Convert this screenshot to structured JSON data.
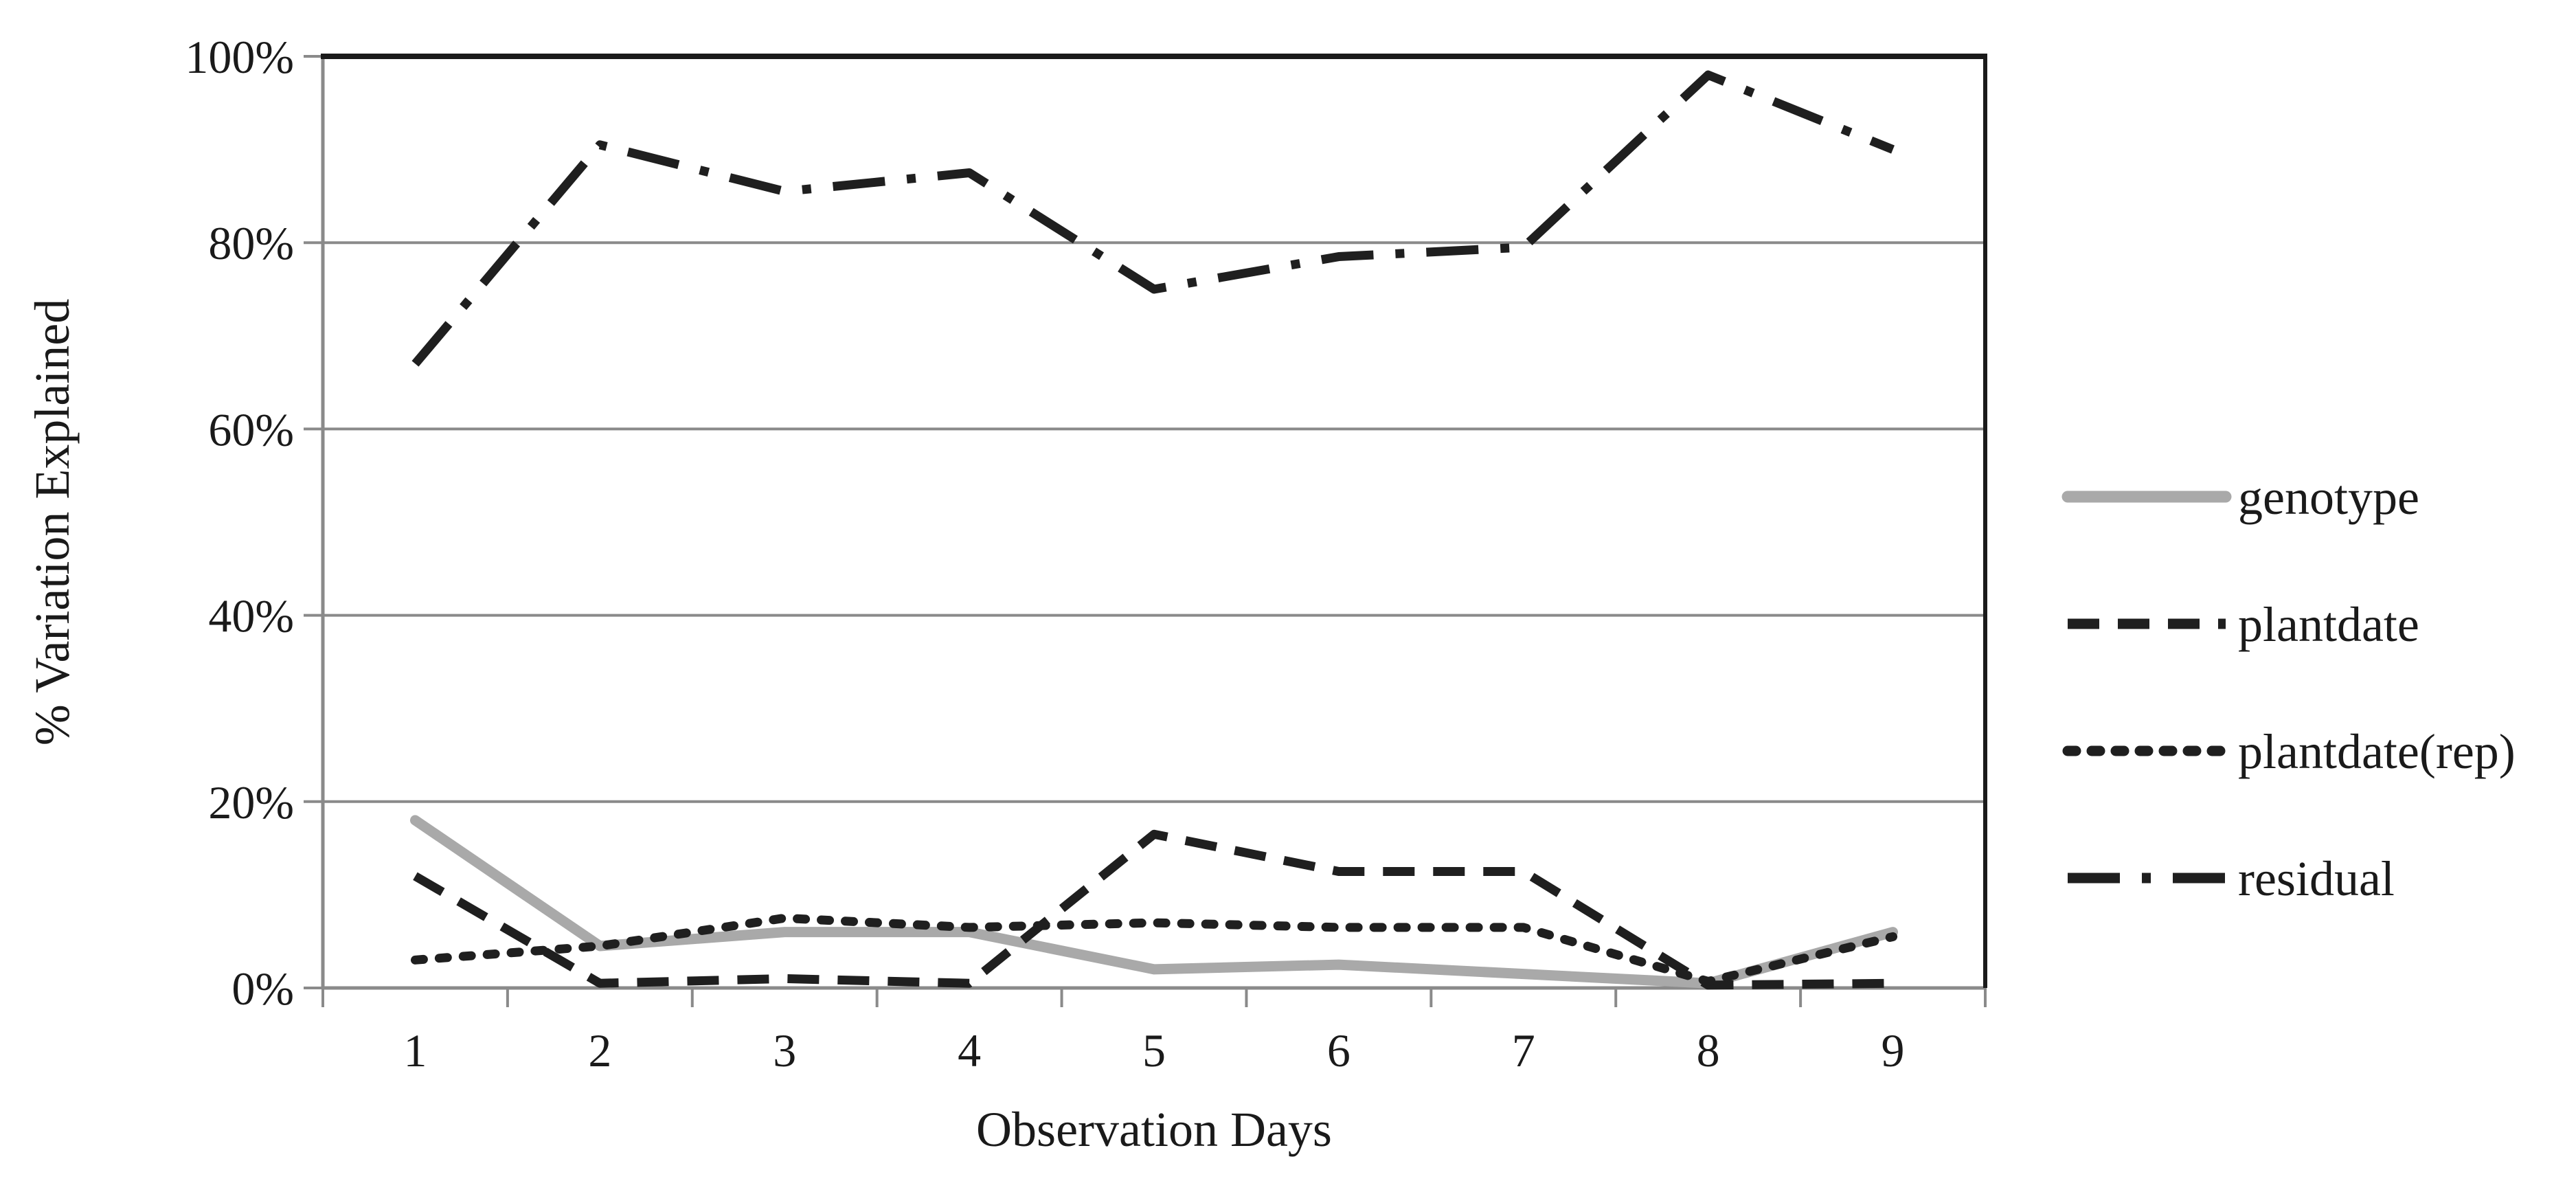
{
  "figure": {
    "background": "#ffffff",
    "text_color": "#1a1a1a",
    "grid_color": "#8a8a8a",
    "border_top_color": "#1a1a1a",
    "border_right_color": "#1a1a1a",
    "axis_color": "#8a8a8a"
  },
  "chart_data": {
    "type": "line",
    "title": "",
    "xlabel": "Observation Days",
    "ylabel": "% Variation Explained",
    "x": [
      1,
      2,
      3,
      4,
      5,
      6,
      7,
      8,
      9
    ],
    "y_ticks": [
      {
        "label": "0%",
        "value": 0
      },
      {
        "label": "20%",
        "value": 20
      },
      {
        "label": "40%",
        "value": 40
      },
      {
        "label": "60%",
        "value": 60
      },
      {
        "label": "80%",
        "value": 80
      },
      {
        "label": "100%",
        "value": 100
      }
    ],
    "ylim": [
      0,
      100
    ],
    "grid": true,
    "legend_position": "right",
    "series": [
      {
        "name": "genotype",
        "style": "solid",
        "color": "#a9a9a9",
        "values": [
          18,
          4.5,
          6,
          6,
          2,
          2.5,
          1.5,
          0.5,
          6
        ]
      },
      {
        "name": "plantdate",
        "style": "dashed",
        "color": "#1f1f1f",
        "values": [
          12,
          0.5,
          1,
          0.5,
          16.5,
          12.5,
          12.5,
          0.3,
          0.5
        ]
      },
      {
        "name": "plantdate(rep)",
        "style": "dotted",
        "color": "#1f1f1f",
        "values": [
          3,
          4.5,
          7.5,
          6.5,
          7,
          6.5,
          6.5,
          0.7,
          5.5
        ]
      },
      {
        "name": "residual",
        "style": "dashdot",
        "color": "#1f1f1f",
        "values": [
          67,
          90.5,
          85.5,
          87.5,
          75,
          78.5,
          79.5,
          98,
          90
        ]
      }
    ]
  }
}
